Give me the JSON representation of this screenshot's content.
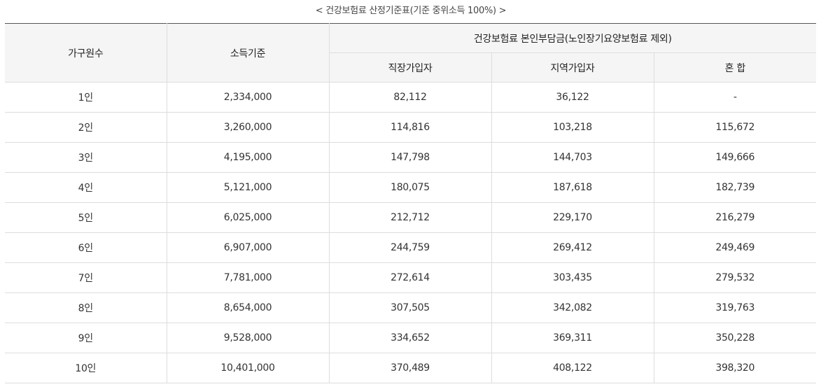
{
  "caption": "< 건강보험료 산정기준표(기준 중위소득 100%) >",
  "headers": {
    "household": "가구원수",
    "income": "소득기준",
    "premium_group": "건강보험료 본인부담금(노인장기요양보험료 제외)",
    "employee": "직장가입자",
    "regional": "지역가입자",
    "mixed": "혼 합"
  },
  "rows": [
    {
      "household": "1인",
      "income": "2,334,000",
      "employee": "82,112",
      "regional": "36,122",
      "mixed": "-"
    },
    {
      "household": "2인",
      "income": "3,260,000",
      "employee": "114,816",
      "regional": "103,218",
      "mixed": "115,672"
    },
    {
      "household": "3인",
      "income": "4,195,000",
      "employee": "147,798",
      "regional": "144,703",
      "mixed": "149,666"
    },
    {
      "household": "4인",
      "income": "5,121,000",
      "employee": "180,075",
      "regional": "187,618",
      "mixed": "182,739"
    },
    {
      "household": "5인",
      "income": "6,025,000",
      "employee": "212,712",
      "regional": "229,170",
      "mixed": "216,279"
    },
    {
      "household": "6인",
      "income": "6,907,000",
      "employee": "244,759",
      "regional": "269,412",
      "mixed": "249,469"
    },
    {
      "household": "7인",
      "income": "7,781,000",
      "employee": "272,614",
      "regional": "303,435",
      "mixed": "279,532"
    },
    {
      "household": "8인",
      "income": "8,654,000",
      "employee": "307,505",
      "regional": "342,082",
      "mixed": "319,763"
    },
    {
      "household": "9인",
      "income": "9,528,000",
      "employee": "334,652",
      "regional": "369,311",
      "mixed": "350,228"
    },
    {
      "household": "10인",
      "income": "10,401,000",
      "employee": "370,489",
      "regional": "408,122",
      "mixed": "398,320"
    }
  ]
}
